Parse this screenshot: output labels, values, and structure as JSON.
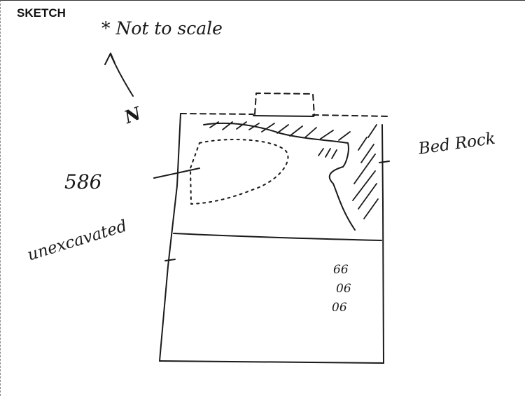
{
  "form": {
    "section_title": "SKETCH"
  },
  "sketch": {
    "scale_note": "* Not to scale",
    "north_label": "N",
    "bedrock_label": "Bed Rock",
    "feature_label": "586",
    "unexcavated_label": "unexcavated",
    "marks": [
      "66",
      "06",
      "06"
    ]
  }
}
